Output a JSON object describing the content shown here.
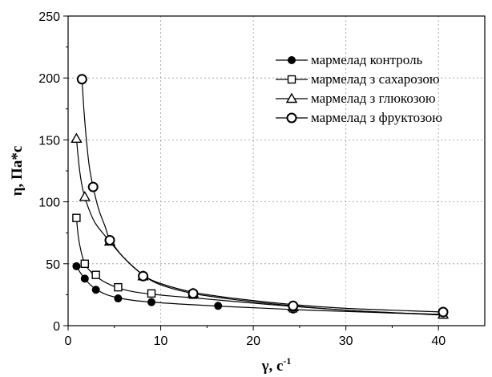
{
  "chart_data": {
    "type": "scatter",
    "xlabel": "γ, c",
    "xlabel_superscript": "-1",
    "ylabel": "η,  Па*с",
    "xlim": [
      0,
      45
    ],
    "ylim": [
      0,
      250
    ],
    "xticks": [
      0,
      10,
      20,
      30,
      40
    ],
    "yticks": [
      0,
      50,
      100,
      150,
      200,
      250
    ],
    "grid": true,
    "grid_style": "dotted",
    "legend_position": "top-right",
    "series": [
      {
        "name": "мармелад контроль",
        "marker": "filled-circle",
        "x": [
          0.9,
          1.8,
          3.0,
          5.4,
          9.0,
          16.2,
          24.3,
          40.5
        ],
        "y": [
          48,
          38,
          29,
          22,
          19,
          16,
          13,
          9
        ],
        "fit": [
          [
            0.9,
            48
          ],
          [
            1.3,
            43
          ],
          [
            1.8,
            38
          ],
          [
            2.4,
            33
          ],
          [
            3.0,
            29.5
          ],
          [
            4.0,
            25.5
          ],
          [
            5.4,
            22.5
          ],
          [
            7.0,
            20.5
          ],
          [
            9.0,
            19
          ],
          [
            12.0,
            17.5
          ],
          [
            16.2,
            15.8
          ],
          [
            20.0,
            14.5
          ],
          [
            24.3,
            13
          ],
          [
            30.0,
            11.5
          ],
          [
            35.0,
            10.2
          ],
          [
            40.5,
            9
          ]
        ]
      },
      {
        "name": "мармелад з сахарозою",
        "marker": "open-square",
        "x": [
          0.9,
          1.8,
          3.0,
          5.4,
          9.0,
          13.5,
          24.3,
          40.5
        ],
        "y": [
          87,
          50,
          41,
          31,
          26,
          25,
          14,
          9
        ],
        "fit": [
          [
            0.9,
            87
          ],
          [
            1.1,
            72
          ],
          [
            1.4,
            60
          ],
          [
            1.8,
            50
          ],
          [
            2.4,
            44
          ],
          [
            3.0,
            40
          ],
          [
            4.0,
            35
          ],
          [
            5.4,
            30.5
          ],
          [
            7.0,
            27.5
          ],
          [
            9.0,
            25.5
          ],
          [
            11.0,
            24
          ],
          [
            13.5,
            22.5
          ],
          [
            18.0,
            19.5
          ],
          [
            24.3,
            15.5
          ],
          [
            30.0,
            12.5
          ],
          [
            35.0,
            10.5
          ],
          [
            40.5,
            8.5
          ]
        ]
      },
      {
        "name": "мармелад з глюкозою",
        "marker": "open-triangle",
        "x": [
          0.9,
          1.8,
          4.5,
          8.1,
          13.5,
          24.3,
          40.5
        ],
        "y": [
          151,
          104,
          68,
          40,
          26,
          15,
          9
        ],
        "fit": [
          [
            0.9,
            151
          ],
          [
            1.2,
            128
          ],
          [
            1.5,
            113
          ],
          [
            1.8,
            104
          ],
          [
            2.3,
            93
          ],
          [
            3.0,
            82
          ],
          [
            4.5,
            68
          ],
          [
            6.0,
            55
          ],
          [
            8.1,
            41
          ],
          [
            10.0,
            33
          ],
          [
            13.5,
            26
          ],
          [
            18.0,
            21
          ],
          [
            24.3,
            16
          ],
          [
            30.0,
            12.5
          ],
          [
            35.0,
            10.5
          ],
          [
            40.5,
            9
          ]
        ]
      },
      {
        "name": "мармелад з фруктозою",
        "marker": "open-circle",
        "x": [
          1.5,
          2.7,
          4.5,
          8.1,
          13.5,
          24.3,
          40.5
        ],
        "y": [
          199,
          112,
          69,
          40,
          26,
          16,
          11
        ],
        "fit": [
          [
            1.5,
            199
          ],
          [
            1.7,
            175
          ],
          [
            2.0,
            148
          ],
          [
            2.3,
            128
          ],
          [
            2.7,
            112
          ],
          [
            3.3,
            94
          ],
          [
            4.0,
            80
          ],
          [
            4.5,
            70
          ],
          [
            6.0,
            55
          ],
          [
            8.1,
            41
          ],
          [
            10.0,
            34
          ],
          [
            13.5,
            27
          ],
          [
            18.0,
            22
          ],
          [
            24.3,
            17
          ],
          [
            30.0,
            14
          ],
          [
            35.0,
            12.5
          ],
          [
            40.5,
            11
          ]
        ]
      }
    ]
  }
}
